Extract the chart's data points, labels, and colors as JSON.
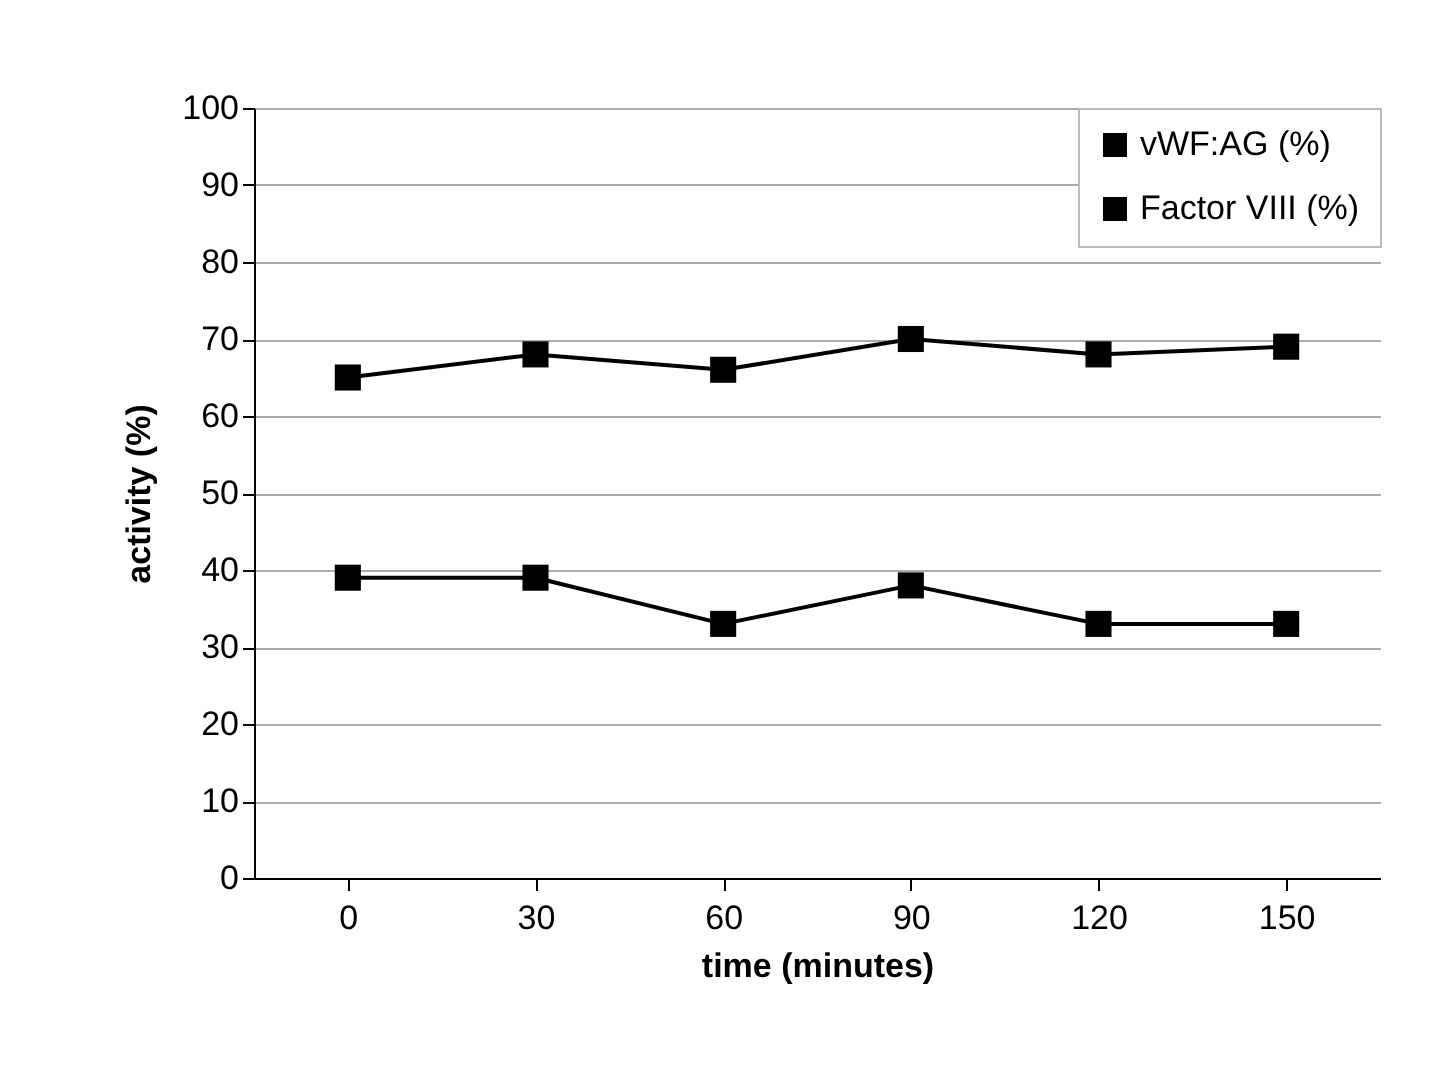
{
  "chart_data": {
    "type": "line",
    "xlabel": "time (minutes)",
    "ylabel": "activity (%)",
    "categories": [
      "0",
      "30",
      "60",
      "90",
      "120",
      "150"
    ],
    "series": [
      {
        "name": "vWF:AG (%)",
        "color": "#000000",
        "values": [
          65,
          68,
          66,
          70,
          68,
          69
        ]
      },
      {
        "name": "Factor VIII (%)",
        "color": "#000000",
        "values": [
          39,
          39,
          33,
          38,
          33,
          33
        ]
      }
    ],
    "ylim": [
      0,
      100
    ],
    "yticks": [
      0,
      10,
      20,
      30,
      40,
      50,
      60,
      70,
      80,
      90,
      100
    ],
    "grid": "y",
    "legend": "top right",
    "marker": "square",
    "line_style": "solid"
  }
}
